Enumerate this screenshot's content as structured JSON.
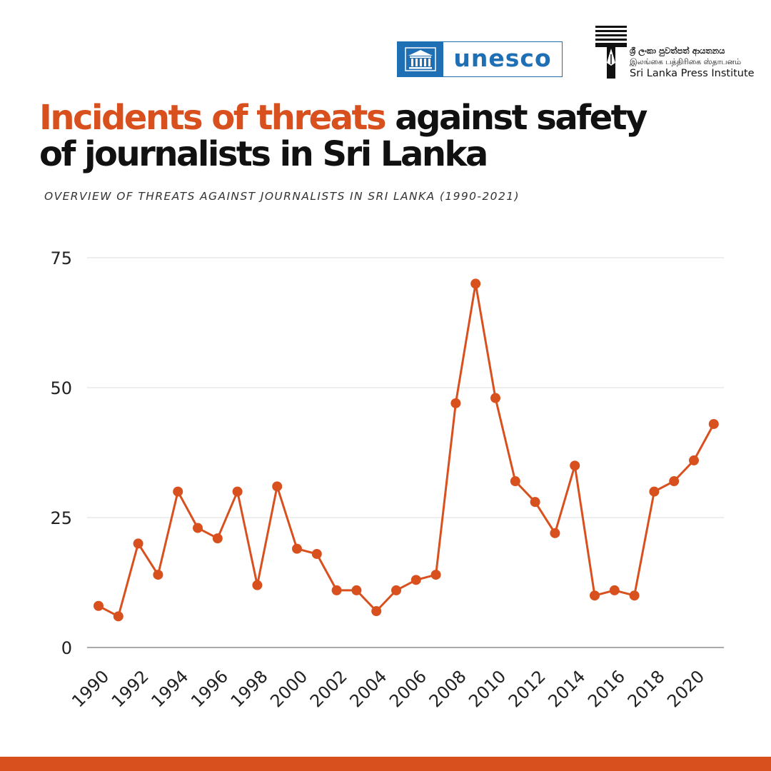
{
  "header": {
    "unesco_logo_text": "unesco",
    "institute": {
      "name_sinhala": "ශ්‍රී ලංකා පුවත්පත් ආයතනය",
      "name_tamil": "இலங்கை பத்திரிகை ஸ்தாபனம்",
      "name_english": "Sri Lanka Press Institute"
    }
  },
  "title": {
    "accent_part": "Incidents of threats",
    "rest_part": " against safety of journalists in Sri Lanka"
  },
  "subtitle": "OVERVIEW OF THREATS AGAINST JOURNALISTS IN SRI LANKA (1990-2021)",
  "colors": {
    "accent": "#d9501f",
    "brand_unesco": "#1f6fb5",
    "gridline": "#dddddd",
    "text": "#111111"
  },
  "chart_data": {
    "type": "line",
    "x": [
      1990,
      1991,
      1992,
      1993,
      1994,
      1995,
      1996,
      1997,
      1998,
      1999,
      2000,
      2001,
      2002,
      2003,
      2004,
      2005,
      2006,
      2007,
      2008,
      2009,
      2010,
      2011,
      2012,
      2013,
      2014,
      2015,
      2016,
      2017,
      2018,
      2019,
      2020,
      2021
    ],
    "values": [
      8,
      6,
      20,
      14,
      30,
      23,
      21,
      30,
      12,
      31,
      19,
      18,
      11,
      11,
      7,
      11,
      13,
      14,
      47,
      70,
      48,
      32,
      28,
      22,
      35,
      10,
      11,
      10,
      30,
      32,
      36,
      43
    ],
    "x_tick_labels": [
      "1990",
      "1992",
      "1994",
      "1996",
      "1998",
      "2000",
      "2002",
      "2004",
      "2006",
      "2008",
      "2010",
      "2012",
      "2014",
      "2016",
      "2018",
      "2020"
    ],
    "y_ticks": [
      0,
      25,
      50,
      75
    ],
    "ylim": [
      0,
      75
    ],
    "grid": "horizontal",
    "legend": "none",
    "xlabel": "",
    "ylabel": "",
    "color": "#d9501f"
  }
}
